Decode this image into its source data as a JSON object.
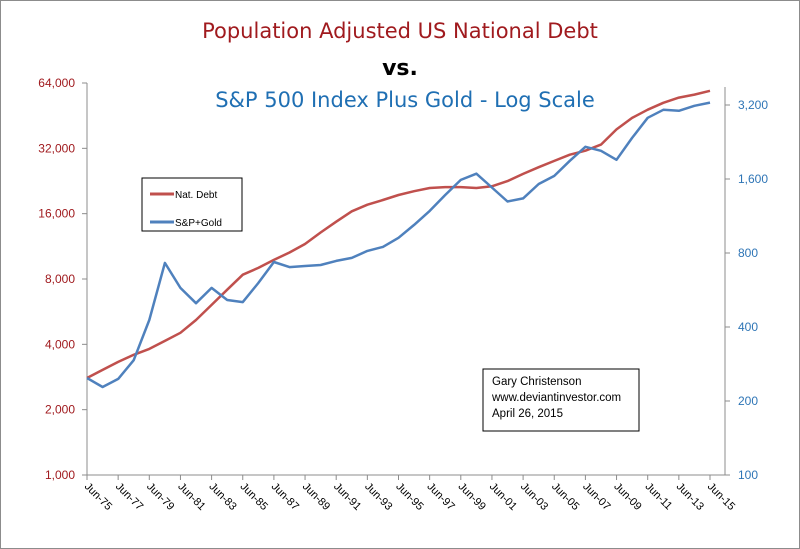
{
  "chart_data": {
    "type": "line",
    "title": "Population Adjusted US National Debt",
    "title_line2": "vs.",
    "title_line3": "S&P 500 Index Plus Gold - Log Scale",
    "xlabel": "",
    "ylabel_left": "",
    "ylabel_right": "",
    "y_left": {
      "scale": "log2",
      "range": [
        1000,
        64000
      ],
      "ticks": [
        "1,000",
        "2,000",
        "4,000",
        "8,000",
        "16,000",
        "32,000",
        "64,000"
      ],
      "tick_values": [
        1000,
        2000,
        4000,
        8000,
        16000,
        32000,
        64000
      ]
    },
    "y_right": {
      "scale": "log2",
      "range": [
        100,
        3200
      ],
      "ticks": [
        "100",
        "200",
        "400",
        "800",
        "1,600",
        "3,200"
      ],
      "tick_values": [
        100,
        200,
        400,
        800,
        1600,
        3200
      ]
    },
    "x_tick_labels": [
      "Jun-75",
      "Jun-77",
      "Jun-79",
      "Jun-81",
      "Jun-83",
      "Jun-85",
      "Jun-87",
      "Jun-89",
      "Jun-91",
      "Jun-93",
      "Jun-95",
      "Jun-97",
      "Jun-99",
      "Jun-01",
      "Jun-03",
      "Jun-05",
      "Jun-07",
      "Jun-09",
      "Jun-11",
      "Jun-13",
      "Jun-15"
    ],
    "x": [
      1975,
      1976,
      1977,
      1978,
      1979,
      1980,
      1981,
      1982,
      1983,
      1984,
      1985,
      1986,
      1987,
      1988,
      1989,
      1990,
      1991,
      1992,
      1993,
      1994,
      1995,
      1996,
      1997,
      1998,
      1999,
      2000,
      2001,
      2002,
      2003,
      2004,
      2005,
      2006,
      2007,
      2008,
      2009,
      2010,
      2011,
      2012,
      2013,
      2014,
      2015
    ],
    "grid": false,
    "legend": {
      "placement": "upper-left",
      "entries": [
        "Nat. Debt",
        "S&P+Gold"
      ]
    },
    "series": [
      {
        "name": "Nat. Debt",
        "axis": "left",
        "color": "#c0504d",
        "values": [
          2800,
          3050,
          3320,
          3580,
          3810,
          4150,
          4520,
          5180,
          6080,
          7140,
          8370,
          9000,
          9800,
          10600,
          11600,
          13100,
          14700,
          16400,
          17600,
          18500,
          19500,
          20300,
          21000,
          21200,
          21200,
          21000,
          21400,
          22600,
          24400,
          26200,
          28000,
          29900,
          31200,
          33300,
          39100,
          44200,
          48200,
          51900,
          54800,
          56600,
          58900
        ]
      },
      {
        "name": "S&P+Gold",
        "axis": "right",
        "color": "#4f81bd",
        "values": [
          248,
          228,
          246,
          293,
          427,
          729,
          577,
          500,
          577,
          515,
          505,
          604,
          735,
          701,
          708,
          715,
          743,
          764,
          816,
          847,
          922,
          1041,
          1187,
          1377,
          1587,
          1681,
          1478,
          1296,
          1334,
          1527,
          1647,
          1897,
          2164,
          2083,
          1915,
          2352,
          2839,
          3060,
          3031,
          3177,
          3272
        ]
      }
    ],
    "annotation": [
      "Gary Christenson",
      "www.deviantinvestor.com",
      "April 26, 2015"
    ]
  }
}
